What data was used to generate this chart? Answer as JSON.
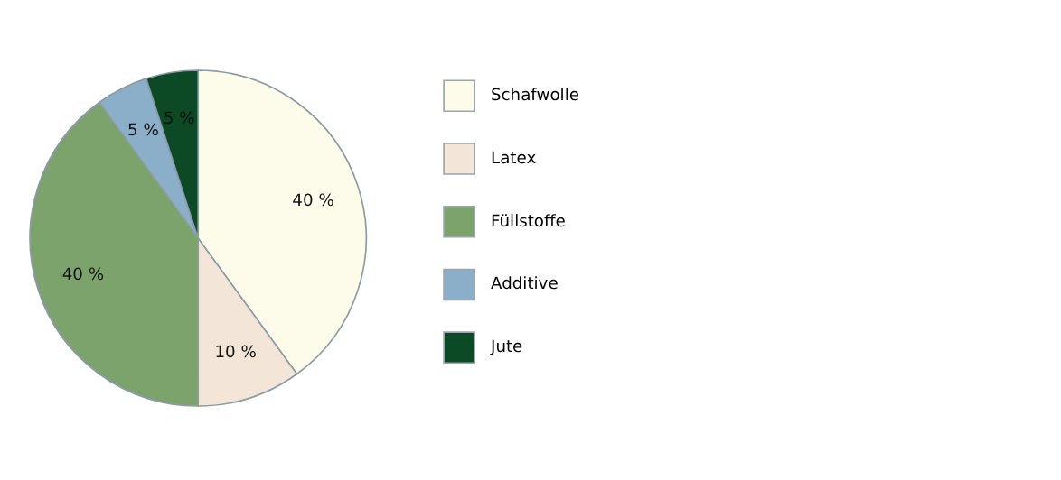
{
  "chart_data": {
    "type": "pie",
    "categories": [
      "Schafwolle",
      "Latex",
      "Füllstoffe",
      "Additive",
      "Jute"
    ],
    "values": [
      40,
      10,
      40,
      5,
      5
    ],
    "colors": [
      "#fdfbea",
      "#f3e5d8",
      "#7ca36c",
      "#8bafc8",
      "#0b4a25"
    ],
    "value_labels": [
      "40 %",
      "10 %",
      "40 %",
      "5 %",
      "5 %"
    ],
    "legend": "right"
  }
}
